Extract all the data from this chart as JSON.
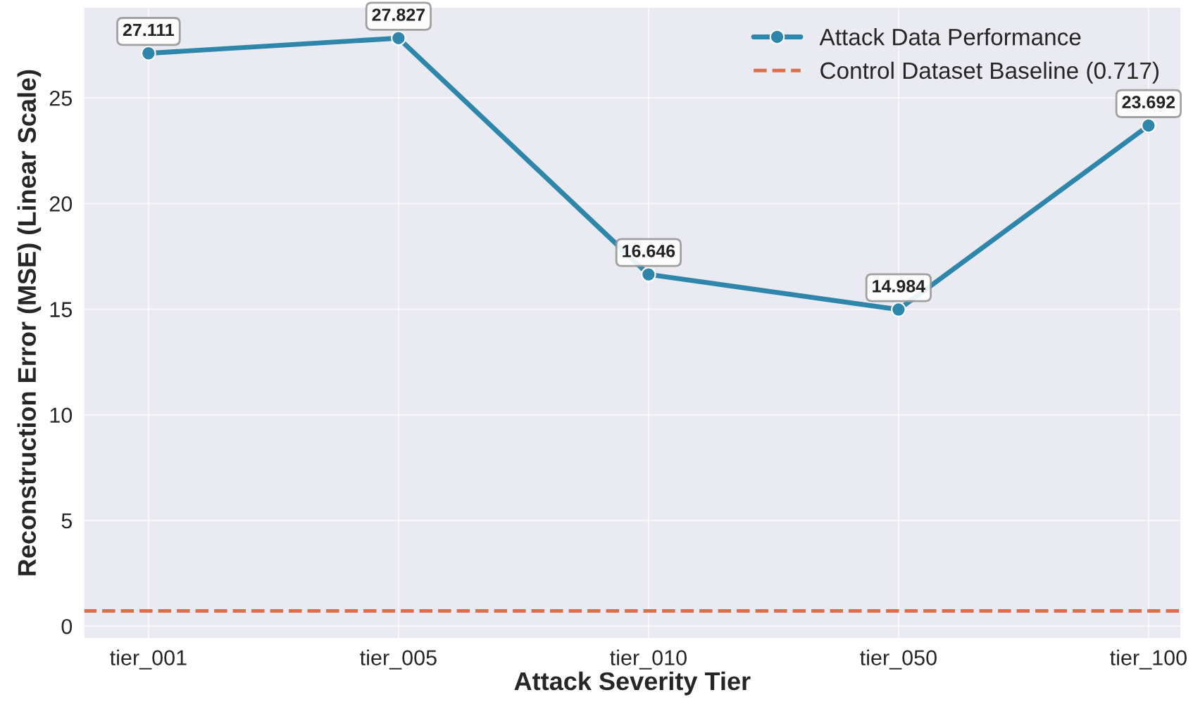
{
  "chart_data": {
    "type": "line",
    "xlabel": "Attack Severity Tier",
    "ylabel": "Reconstruction Error (MSE) (Linear Scale)",
    "categories": [
      "tier_001",
      "tier_005",
      "tier_010",
      "tier_050",
      "tier_100"
    ],
    "series": [
      {
        "name": "Attack Data Performance",
        "color": "#2e86ab",
        "values": [
          27.111,
          27.827,
          16.646,
          14.984,
          23.692
        ]
      }
    ],
    "ref_lines": [
      {
        "axis": "y",
        "value": 0.717,
        "label": "Control Dataset Baseline (0.717)",
        "color": "#d9603b",
        "line_style": "dashed"
      }
    ],
    "ylim": [
      -0.6,
      29.3
    ],
    "yticks": [
      0,
      5,
      10,
      15,
      20,
      25
    ],
    "data_labels": true,
    "grid": true,
    "legend": "top right",
    "marker": "circle",
    "line_style": "solid"
  }
}
